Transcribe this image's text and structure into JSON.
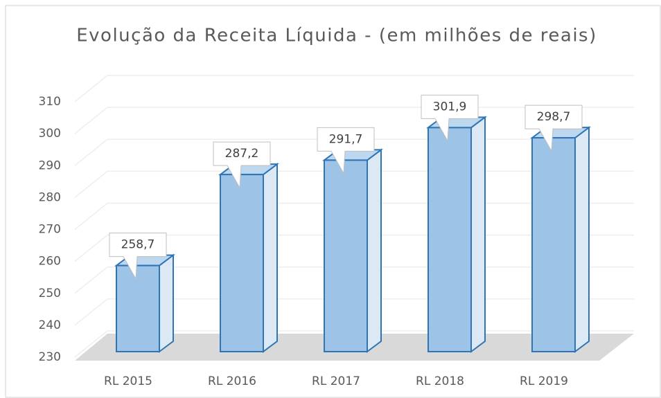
{
  "chart_data": {
    "type": "bar3d",
    "title": "Evolução da Receita Líquida - (em milhões de reais)",
    "categories": [
      "RL 2015",
      "RL 2016",
      "RL 2017",
      "RL 2018",
      "RL 2019"
    ],
    "values": [
      258.7,
      287.2,
      291.7,
      301.9,
      298.7
    ],
    "value_labels": [
      "258,7",
      "287,2",
      "291,7",
      "301,9",
      "298,7"
    ],
    "color": "#9dc3e6",
    "ylim": [
      230,
      310
    ],
    "yticks": [
      230,
      240,
      250,
      260,
      270,
      280,
      290,
      300,
      310
    ],
    "grid": true
  }
}
